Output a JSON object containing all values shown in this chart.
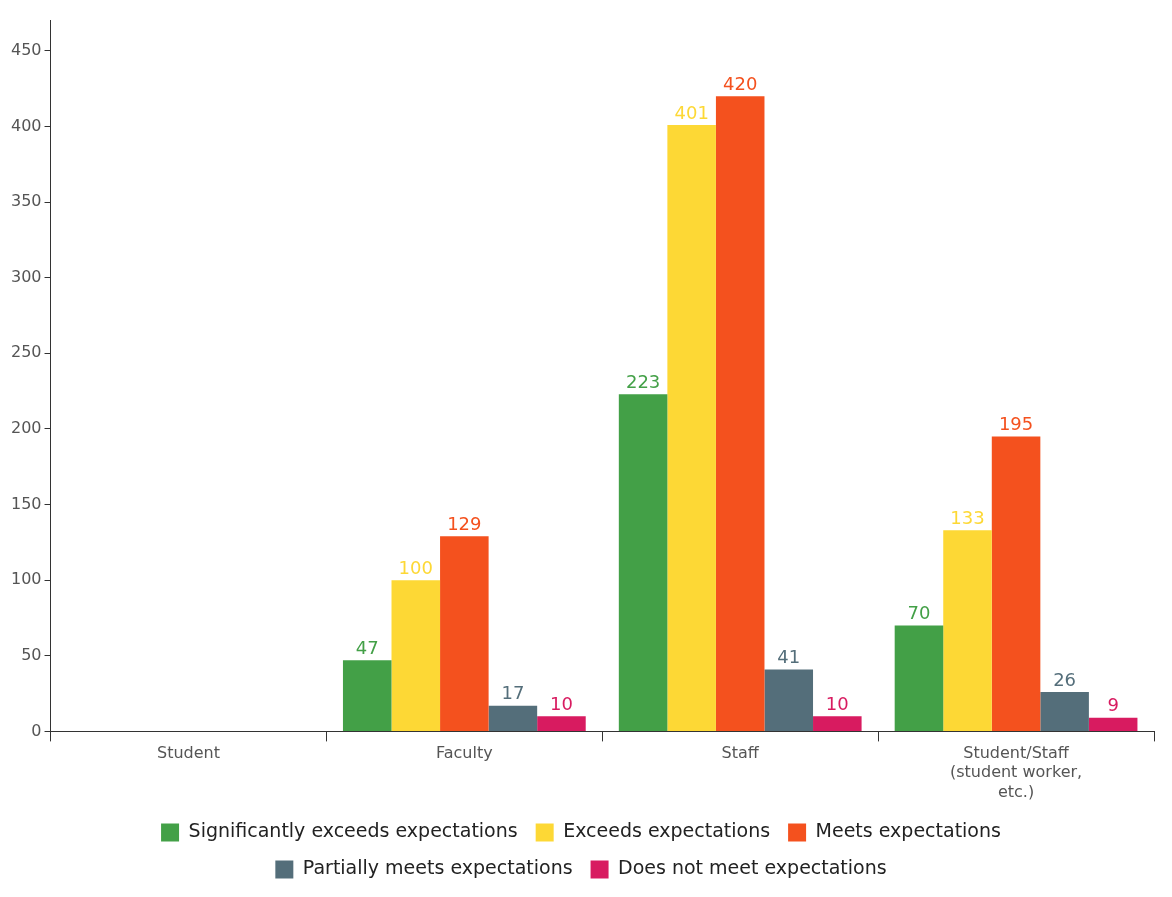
{
  "chart_data": {
    "type": "bar",
    "categories": [
      "Student",
      "Faculty",
      "Staff",
      "Student/Staff (student worker, etc.)"
    ],
    "series": [
      {
        "name": "Significantly exceeds expectations",
        "color": "#43a047",
        "values": [
          null,
          47,
          223,
          70
        ]
      },
      {
        "name": "Exceeds expectations",
        "color": "#fdd835",
        "values": [
          null,
          100,
          401,
          133
        ]
      },
      {
        "name": "Meets expectations",
        "color": "#f4511e",
        "values": [
          null,
          129,
          420,
          195
        ]
      },
      {
        "name": "Partially meets expectations",
        "color": "#546e7a",
        "values": [
          null,
          17,
          41,
          26
        ]
      },
      {
        "name": "Does not meet expectations",
        "color": "#d81b60",
        "values": [
          null,
          10,
          10,
          9
        ]
      }
    ],
    "ylim": [
      0,
      470
    ],
    "yticks": [
      0,
      50,
      100,
      150,
      200,
      250,
      300,
      350,
      400,
      450
    ],
    "grid": false,
    "legend": "bottom",
    "data_labels": true
  }
}
